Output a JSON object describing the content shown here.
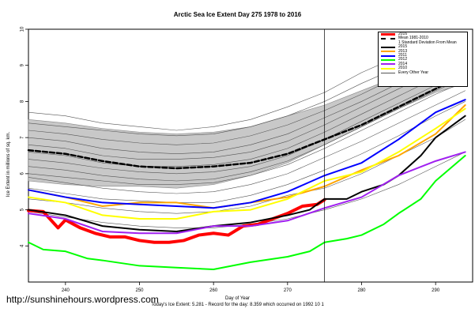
{
  "chart_data": {
    "type": "line",
    "title": "Arctic Sea Ice Extent Day 275 1978 to 2016",
    "xlabel": "Day of Year",
    "ylabel": "Ice Extent in millions of sq. km.",
    "xlim": [
      235,
      295
    ],
    "ylim": [
      3.0,
      10.0
    ],
    "xticks": [
      "240",
      "250",
      "260",
      "270",
      "280",
      "290"
    ],
    "yticks": [
      "4",
      "5",
      "6",
      "7",
      "8",
      "9",
      "10"
    ],
    "grid": false,
    "legend_position": "top-right",
    "current_day_marker": 275,
    "band": {
      "name": "1 Standard Deviation From Mean",
      "x": [
        235,
        240,
        245,
        250,
        255,
        260,
        265,
        270,
        275,
        280,
        285,
        290,
        294
      ],
      "upper": [
        7.5,
        7.4,
        7.25,
        7.15,
        7.1,
        7.15,
        7.3,
        7.6,
        7.9,
        8.3,
        8.7,
        9.15,
        9.4
      ],
      "lower": [
        5.8,
        5.7,
        5.65,
        5.65,
        5.6,
        5.7,
        5.95,
        6.3,
        6.8,
        7.3,
        7.8,
        8.25,
        8.5
      ]
    },
    "series": [
      {
        "name": "2016",
        "color": "#ff0000",
        "width": 4,
        "x": [
          235,
          237,
          239,
          240,
          242,
          244,
          246,
          248,
          250,
          252,
          254,
          256,
          258,
          260,
          262,
          264,
          266,
          268,
          270,
          272,
          274,
          275
        ],
        "values": [
          4.98,
          4.95,
          4.5,
          4.72,
          4.5,
          4.35,
          4.25,
          4.25,
          4.15,
          4.1,
          4.1,
          4.15,
          4.3,
          4.35,
          4.3,
          4.55,
          4.6,
          4.75,
          4.9,
          5.1,
          5.15,
          5.28
        ]
      },
      {
        "name": "Mean 1981-2010",
        "color": "#000000",
        "width": 2.5,
        "dash": "6,3",
        "x": [
          235,
          240,
          245,
          250,
          255,
          260,
          265,
          270,
          275,
          280,
          285,
          290,
          294
        ],
        "values": [
          6.65,
          6.55,
          6.35,
          6.2,
          6.15,
          6.2,
          6.3,
          6.55,
          6.95,
          7.35,
          7.85,
          8.35,
          8.75
        ]
      },
      {
        "name": "2015",
        "color": "#000000",
        "width": 2,
        "x": [
          235,
          240,
          245,
          250,
          255,
          260,
          265,
          270,
          273,
          275,
          278,
          280,
          283,
          285,
          288,
          290,
          294
        ],
        "values": [
          5.0,
          4.85,
          4.55,
          4.45,
          4.4,
          4.55,
          4.65,
          4.85,
          5.0,
          5.3,
          5.3,
          5.5,
          5.7,
          5.95,
          6.5,
          7.0,
          7.6
        ]
      },
      {
        "name": "2013",
        "color": "#ffa500",
        "width": 2,
        "x": [
          235,
          240,
          245,
          250,
          255,
          260,
          265,
          270,
          275,
          280,
          285,
          290,
          294
        ],
        "values": [
          5.55,
          5.35,
          5.1,
          5.2,
          5.2,
          5.05,
          5.2,
          5.35,
          5.65,
          6.1,
          6.5,
          7.1,
          7.9
        ]
      },
      {
        "name": "2011",
        "color": "#0000ff",
        "width": 2,
        "x": [
          235,
          240,
          245,
          250,
          255,
          260,
          265,
          270,
          275,
          280,
          285,
          290,
          294
        ],
        "values": [
          5.55,
          5.35,
          5.2,
          5.15,
          5.1,
          5.05,
          5.2,
          5.5,
          5.95,
          6.3,
          6.95,
          7.7,
          8.05
        ]
      },
      {
        "name": "2012",
        "color": "#00ff00",
        "width": 2,
        "x": [
          235,
          237,
          240,
          243,
          245,
          250,
          255,
          260,
          265,
          270,
          273,
          275,
          278,
          280,
          283,
          285,
          288,
          290,
          294
        ],
        "values": [
          4.1,
          3.9,
          3.85,
          3.65,
          3.6,
          3.45,
          3.4,
          3.35,
          3.55,
          3.7,
          3.85,
          4.1,
          4.2,
          4.3,
          4.6,
          4.9,
          5.3,
          5.8,
          6.5
        ]
      },
      {
        "name": "2014",
        "color": "#a020f0",
        "width": 2,
        "x": [
          235,
          240,
          245,
          250,
          255,
          260,
          265,
          270,
          275,
          280,
          285,
          290,
          294
        ],
        "values": [
          4.9,
          4.75,
          4.4,
          4.35,
          4.35,
          4.55,
          4.55,
          4.7,
          5.05,
          5.35,
          5.95,
          6.35,
          6.6
        ]
      },
      {
        "name": "2010",
        "color": "#ffff00",
        "width": 2,
        "x": [
          235,
          240,
          245,
          250,
          255,
          260,
          265,
          270,
          275,
          280,
          285,
          290,
          294
        ],
        "values": [
          5.35,
          5.2,
          4.85,
          4.75,
          4.75,
          4.95,
          5.0,
          5.3,
          5.8,
          6.05,
          6.6,
          7.25,
          7.8
        ]
      },
      {
        "name": "Every Other Year",
        "color": "#555555",
        "width": 0.6,
        "x": [
          235,
          240,
          245,
          250,
          255,
          260,
          265,
          270,
          275,
          280,
          285,
          290,
          294
        ],
        "groups": [
          [
            7.7,
            7.6,
            7.4,
            7.3,
            7.2,
            7.3,
            7.5,
            7.85,
            8.25,
            8.8,
            9.25,
            9.6,
            9.8
          ],
          [
            7.4,
            7.3,
            7.2,
            7.1,
            7.05,
            7.1,
            7.3,
            7.6,
            8.0,
            8.5,
            8.95,
            9.35,
            9.6
          ],
          [
            7.2,
            7.1,
            6.95,
            6.85,
            6.8,
            6.85,
            7.05,
            7.35,
            7.75,
            8.2,
            8.7,
            9.15,
            9.5
          ],
          [
            7.0,
            6.9,
            6.7,
            6.6,
            6.55,
            6.6,
            6.8,
            7.1,
            7.55,
            8.0,
            8.5,
            8.95,
            9.3
          ],
          [
            6.8,
            6.7,
            6.5,
            6.4,
            6.4,
            6.45,
            6.6,
            6.9,
            7.35,
            7.85,
            8.35,
            8.85,
            9.2
          ],
          [
            6.6,
            6.5,
            6.3,
            6.2,
            6.2,
            6.25,
            6.4,
            6.7,
            7.15,
            7.65,
            8.15,
            8.65,
            9.0
          ],
          [
            6.4,
            6.3,
            6.15,
            6.05,
            6.0,
            6.05,
            6.2,
            6.5,
            6.95,
            7.45,
            7.95,
            8.45,
            8.8
          ],
          [
            6.2,
            6.1,
            5.95,
            5.85,
            5.8,
            5.85,
            6.05,
            6.35,
            6.8,
            7.3,
            7.8,
            8.3,
            8.65
          ],
          [
            6.0,
            5.9,
            5.8,
            5.7,
            5.7,
            5.75,
            5.95,
            6.25,
            6.7,
            7.2,
            7.7,
            8.2,
            8.55
          ],
          [
            5.9,
            5.75,
            5.6,
            5.5,
            5.45,
            5.5,
            5.7,
            6.0,
            6.45,
            6.9,
            7.4,
            7.9,
            8.3
          ],
          [
            5.6,
            5.45,
            5.3,
            5.25,
            5.2,
            5.2,
            5.4,
            5.7,
            6.1,
            6.55,
            7.05,
            7.6,
            8.0
          ],
          [
            5.3,
            5.2,
            5.05,
            4.95,
            4.9,
            4.95,
            5.1,
            5.4,
            5.6,
            6.0,
            6.5,
            7.0,
            7.5
          ],
          [
            4.95,
            4.8,
            4.65,
            4.55,
            4.5,
            4.5,
            4.6,
            4.75,
            5.0,
            5.3,
            5.7,
            6.2,
            6.6
          ]
        ]
      }
    ],
    "legend": [
      "2016",
      "Mean 1981-2010",
      "1 Standard Deviation From Mean",
      "2015",
      "2013",
      "2011",
      "2012",
      "2014",
      "2010",
      "Every Other Year"
    ],
    "footer": "Today's Ice Extent: 5.281 - Record for the day: 8.359 which occurred on 1992 10 1",
    "watermark": "http://sunshinehours.wordpress.com"
  }
}
